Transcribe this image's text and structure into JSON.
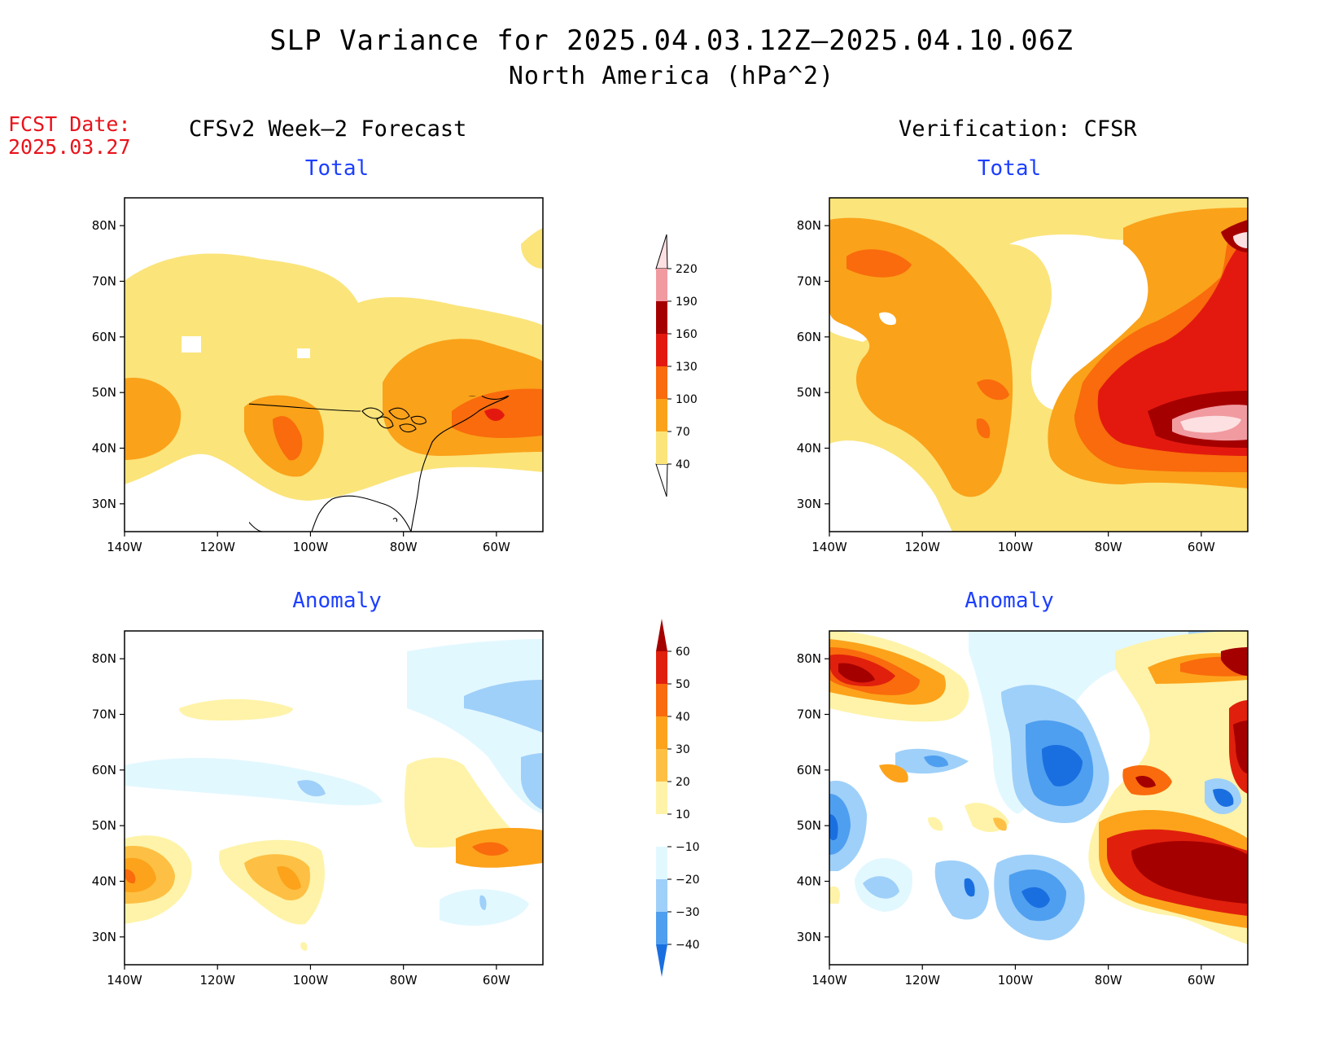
{
  "title": "SLP Variance for 2025.04.03.12Z–2025.04.10.06Z",
  "subtitle": "North America (hPa^2)",
  "fcst_label": "FCST Date:",
  "fcst_date": "2025.03.27",
  "left_column_title": "CFSv2 Week–2 Forecast",
  "right_column_title": "Verification: CFSR",
  "panel_titles": {
    "top": "Total",
    "bottom": "Anomaly"
  },
  "lat_ticks": [
    "80N",
    "70N",
    "60N",
    "50N",
    "40N",
    "30N"
  ],
  "lon_ticks": [
    "140W",
    "120W",
    "100W",
    "80W",
    "60W"
  ],
  "lat_values": [
    80,
    70,
    60,
    50,
    40,
    30
  ],
  "lon_values": [
    -140,
    -120,
    -100,
    -80,
    -60
  ],
  "map_extent": {
    "lon": [
      -140,
      -50
    ],
    "lat": [
      25,
      85
    ]
  },
  "total_colorbar": {
    "levels": [
      "40",
      "70",
      "100",
      "130",
      "160",
      "190",
      "220"
    ],
    "colors": [
      "#fbe47a",
      "#faa21a",
      "#f96b0c",
      "#e3190f",
      "#a50000",
      "#f19aa0",
      "#fde0e2"
    ]
  },
  "anomaly_colorbar": {
    "levels": [
      "60",
      "50",
      "40",
      "30",
      "20",
      "10",
      "−10",
      "−20",
      "−30",
      "−40"
    ],
    "colors_top_to_bottom": [
      "#a50000",
      "#e0200c",
      "#f96b0c",
      "#fca31b",
      "#fdc044",
      "#fef3a8",
      "#ffffff",
      "#e2f8ff",
      "#9fd0f9",
      "#4f9ff0",
      "#1a6fe0"
    ]
  }
}
